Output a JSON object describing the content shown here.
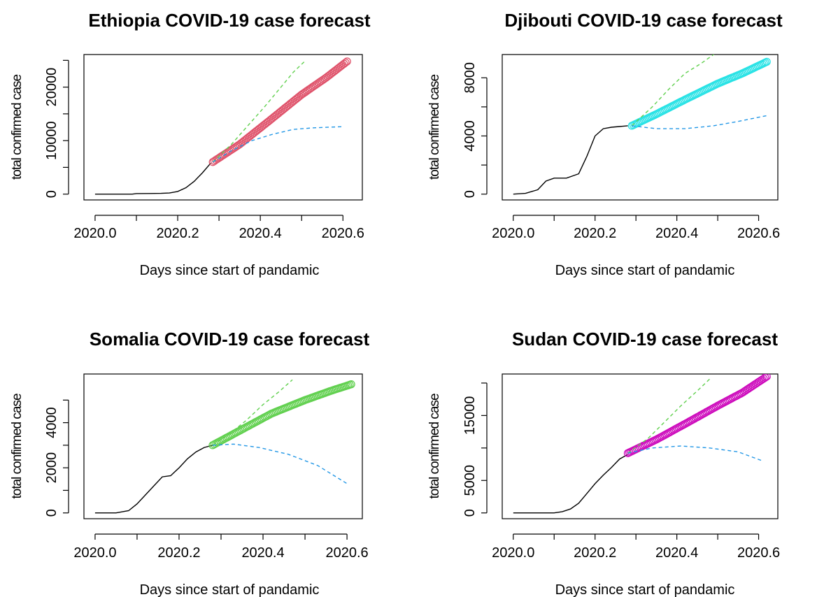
{
  "chart_data": [
    {
      "type": "line",
      "title": "Ethiopia COVID-19 case forecast",
      "xlabel": "Days since start of pandamic",
      "ylabel": "total confirmed case",
      "xticks": [
        "2020.0",
        "2020.2",
        "2020.4",
        "2020.6"
      ],
      "yticks": [
        "0",
        "10000",
        "20000"
      ],
      "xlim": [
        2020.0,
        2020.62
      ],
      "ylim": [
        0,
        25000
      ],
      "observed_color": "#000000",
      "forecast_color": "#DF536B",
      "upper_color": "#61D04F",
      "lower_color": "#2297E6",
      "series": [
        {
          "role": "observed",
          "x": [
            2020.0,
            2020.03,
            2020.06,
            2020.09,
            2020.1,
            2020.13,
            2020.16,
            2020.18,
            2020.2,
            2020.22,
            2020.24,
            2020.26,
            2020.28
          ],
          "y": [
            0,
            0,
            0,
            0,
            100,
            120,
            140,
            200,
            500,
            1200,
            2400,
            4000,
            5800
          ]
        },
        {
          "role": "forecast",
          "x": [
            2020.285,
            2020.35,
            2020.42,
            2020.5,
            2020.56,
            2020.61
          ],
          "y": [
            6000,
            9300,
            13600,
            18600,
            21800,
            24800
          ]
        },
        {
          "role": "upper",
          "x": [
            2020.285,
            2020.33,
            2020.37,
            2020.41,
            2020.45,
            2020.48,
            2020.51
          ],
          "y": [
            6000,
            9300,
            12800,
            16300,
            20000,
            22800,
            25000
          ]
        },
        {
          "role": "lower",
          "x": [
            2020.285,
            2020.33,
            2020.38,
            2020.43,
            2020.48,
            2020.53,
            2020.6
          ],
          "y": [
            6000,
            8100,
            10000,
            11200,
            12100,
            12400,
            12600
          ]
        }
      ]
    },
    {
      "type": "line",
      "title": "Djibouti COVID-19 case forecast",
      "xlabel": "Days since start of pandamic",
      "ylabel": "total confirmed case",
      "xticks": [
        "2020.0",
        "2020.2",
        "2020.4",
        "2020.6"
      ],
      "yticks": [
        "0",
        "4000",
        "8000"
      ],
      "xlim": [
        2020.0,
        2020.62
      ],
      "ylim": [
        0,
        9200
      ],
      "observed_color": "#000000",
      "forecast_color": "#28E2E5",
      "upper_color": "#61D04F",
      "lower_color": "#2297E6",
      "series": [
        {
          "role": "observed",
          "x": [
            2020.0,
            2020.03,
            2020.06,
            2020.08,
            2020.1,
            2020.13,
            2020.16,
            2020.18,
            2020.2,
            2020.22,
            2020.24,
            2020.26,
            2020.28
          ],
          "y": [
            0,
            50,
            300,
            900,
            1100,
            1100,
            1400,
            2600,
            4000,
            4500,
            4600,
            4650,
            4700
          ]
        },
        {
          "role": "forecast",
          "x": [
            2020.29,
            2020.35,
            2020.42,
            2020.5,
            2020.56,
            2020.62
          ],
          "y": [
            4700,
            5500,
            6500,
            7600,
            8300,
            9100
          ]
        },
        {
          "role": "upper",
          "x": [
            2020.29,
            2020.34,
            2020.38,
            2020.42,
            2020.46,
            2020.5
          ],
          "y": [
            4700,
            6000,
            7200,
            8300,
            9000,
            9800
          ]
        },
        {
          "role": "lower",
          "x": [
            2020.29,
            2020.35,
            2020.42,
            2020.49,
            2020.55,
            2020.62
          ],
          "y": [
            4700,
            4500,
            4500,
            4700,
            5000,
            5400
          ]
        }
      ]
    },
    {
      "type": "line",
      "title": "Somalia COVID-19 case forecast",
      "xlabel": "Days since start of pandamic",
      "ylabel": "total confirmed case",
      "xticks": [
        "2020.0",
        "2020.2",
        "2020.4",
        "2020.6"
      ],
      "yticks": [
        "0",
        "2000",
        "4000"
      ],
      "xlim": [
        2020.0,
        2020.61
      ],
      "ylim": [
        0,
        5900
      ],
      "observed_color": "#000000",
      "forecast_color": "#61D04F",
      "upper_color": "#61D04F",
      "lower_color": "#2297E6",
      "series": [
        {
          "role": "observed",
          "x": [
            2020.0,
            2020.05,
            2020.08,
            2020.1,
            2020.12,
            2020.14,
            2020.16,
            2020.18,
            2020.2,
            2020.22,
            2020.24,
            2020.26,
            2020.28
          ],
          "y": [
            0,
            0,
            100,
            400,
            800,
            1200,
            1600,
            1650,
            2000,
            2400,
            2700,
            2900,
            3000
          ]
        },
        {
          "role": "forecast",
          "x": [
            2020.28,
            2020.35,
            2020.42,
            2020.5,
            2020.56,
            2020.61
          ],
          "y": [
            3000,
            3700,
            4400,
            5000,
            5400,
            5700
          ]
        },
        {
          "role": "upper",
          "x": [
            2020.28,
            2020.32,
            2020.36,
            2020.4,
            2020.44,
            2020.47
          ],
          "y": [
            3000,
            3500,
            4100,
            4800,
            5400,
            5900
          ]
        },
        {
          "role": "lower",
          "x": [
            2020.28,
            2020.33,
            2020.39,
            2020.46,
            2020.53,
            2020.6
          ],
          "y": [
            3000,
            3050,
            2900,
            2600,
            2100,
            1300
          ]
        }
      ]
    },
    {
      "type": "line",
      "title": "Sudan COVID-19 case forecast",
      "xlabel": "Days since start of pandamic",
      "ylabel": "total confirmed case",
      "xticks": [
        "2020.0",
        "2020.2",
        "2020.4",
        "2020.6"
      ],
      "yticks": [
        "0",
        "5000",
        "15000"
      ],
      "xlim": [
        2020.0,
        2020.62
      ],
      "ylim": [
        0,
        20500
      ],
      "observed_color": "#000000",
      "forecast_color": "#CD0BBC",
      "upper_color": "#61D04F",
      "lower_color": "#2297E6",
      "series": [
        {
          "role": "observed",
          "x": [
            2020.0,
            2020.06,
            2020.1,
            2020.12,
            2020.14,
            2020.16,
            2020.18,
            2020.2,
            2020.22,
            2020.24,
            2020.26,
            2020.28
          ],
          "y": [
            0,
            0,
            0,
            200,
            600,
            1500,
            3000,
            4500,
            5800,
            7000,
            8300,
            9000
          ]
        },
        {
          "role": "forecast",
          "x": [
            2020.28,
            2020.35,
            2020.42,
            2020.5,
            2020.56,
            2020.62
          ],
          "y": [
            9200,
            11300,
            13700,
            16500,
            18500,
            21000
          ]
        },
        {
          "role": "upper",
          "x": [
            2020.28,
            2020.33,
            2020.37,
            2020.41,
            2020.45,
            2020.48
          ],
          "y": [
            9200,
            11500,
            14000,
            16500,
            18800,
            20600
          ]
        },
        {
          "role": "lower",
          "x": [
            2020.28,
            2020.34,
            2020.41,
            2020.48,
            2020.55,
            2020.61
          ],
          "y": [
            9200,
            10000,
            10300,
            10000,
            9400,
            8000
          ]
        }
      ]
    }
  ]
}
